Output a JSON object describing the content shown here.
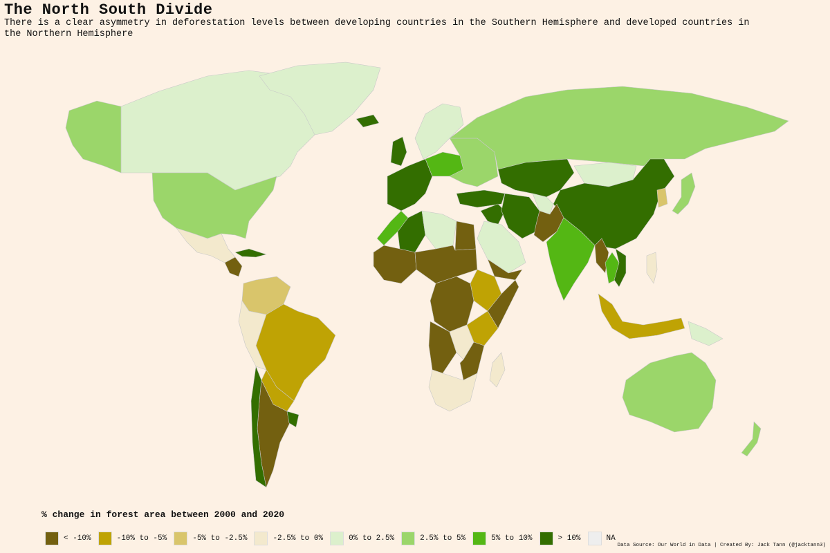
{
  "title": "The North South Divide",
  "subtitle": "There is a clear asymmetry in deforestation levels between developing countries in the Southern Hemisphere and developed countries in the Northern Hemisphere",
  "legend": {
    "title": "% change in forest area between 2000 and 2020",
    "items": [
      {
        "label": "< -10%",
        "color": "#736010"
      },
      {
        "label": "-10% to -5%",
        "color": "#bfa304"
      },
      {
        "label": "-5% to -2.5%",
        "color": "#d9c56b"
      },
      {
        "label": "-2.5% to 0%",
        "color": "#f3e9cd"
      },
      {
        "label": "0% to 2.5%",
        "color": "#dcf0cc"
      },
      {
        "label": "2.5% to 5%",
        "color": "#9bd66a"
      },
      {
        "label": "5% to 10%",
        "color": "#54b714"
      },
      {
        "label": "> 10%",
        "color": "#336e00"
      },
      {
        "label": "NA",
        "color": "#eeeeee"
      }
    ]
  },
  "credit": "Data Source: Our World in Data | Created By: Jack Tann (@jacktann3)",
  "regions": [
    {
      "name": "canada",
      "color": "#dcf0cc"
    },
    {
      "name": "alaska",
      "color": "#9bd66a"
    },
    {
      "name": "usa",
      "color": "#9bd66a"
    },
    {
      "name": "greenland",
      "color": "#dcf0cc"
    },
    {
      "name": "mexico",
      "color": "#f3e9cd"
    },
    {
      "name": "central-america",
      "color": "#736010"
    },
    {
      "name": "cuba",
      "color": "#336e00"
    },
    {
      "name": "colombia-venezuela",
      "color": "#d9c56b"
    },
    {
      "name": "brazil",
      "color": "#bfa304"
    },
    {
      "name": "peru",
      "color": "#f3e9cd"
    },
    {
      "name": "bolivia-paraguay",
      "color": "#bfa304"
    },
    {
      "name": "argentina",
      "color": "#736010"
    },
    {
      "name": "chile",
      "color": "#336e00"
    },
    {
      "name": "uruguay",
      "color": "#336e00"
    },
    {
      "name": "iceland",
      "color": "#336e00"
    },
    {
      "name": "scandinavia",
      "color": "#dcf0cc"
    },
    {
      "name": "uk",
      "color": "#336e00"
    },
    {
      "name": "western-europe",
      "color": "#336e00"
    },
    {
      "name": "central-europe",
      "color": "#54b714"
    },
    {
      "name": "eastern-europe",
      "color": "#9bd66a"
    },
    {
      "name": "russia",
      "color": "#9bd66a"
    },
    {
      "name": "turkey",
      "color": "#336e00"
    },
    {
      "name": "middle-east",
      "color": "#336e00"
    },
    {
      "name": "saudi-arabia",
      "color": "#dcf0cc"
    },
    {
      "name": "yemen",
      "color": "#736010"
    },
    {
      "name": "morocco",
      "color": "#54b714"
    },
    {
      "name": "algeria",
      "color": "#336e00"
    },
    {
      "name": "libya",
      "color": "#dcf0cc"
    },
    {
      "name": "egypt",
      "color": "#736010"
    },
    {
      "name": "west-africa",
      "color": "#736010"
    },
    {
      "name": "sahel",
      "color": "#736010"
    },
    {
      "name": "ethiopia",
      "color": "#bfa304"
    },
    {
      "name": "somalia",
      "color": "#736010"
    },
    {
      "name": "congo",
      "color": "#736010"
    },
    {
      "name": "east-africa",
      "color": "#bfa304"
    },
    {
      "name": "angola",
      "color": "#736010"
    },
    {
      "name": "zambia",
      "color": "#f3e9cd"
    },
    {
      "name": "mozambique",
      "color": "#736010"
    },
    {
      "name": "south-africa",
      "color": "#f3e9cd"
    },
    {
      "name": "madagascar",
      "color": "#f3e9cd"
    },
    {
      "name": "kazakhstan-central-asia",
      "color": "#336e00"
    },
    {
      "name": "mongolia",
      "color": "#dcf0cc"
    },
    {
      "name": "china",
      "color": "#336e00"
    },
    {
      "name": "iran",
      "color": "#336e00"
    },
    {
      "name": "pakistan",
      "color": "#736010"
    },
    {
      "name": "afghanistan",
      "color": "#dcf0cc"
    },
    {
      "name": "india",
      "color": "#54b714"
    },
    {
      "name": "myanmar",
      "color": "#736010"
    },
    {
      "name": "indochina",
      "color": "#54b714"
    },
    {
      "name": "vietnam",
      "color": "#336e00"
    },
    {
      "name": "korea",
      "color": "#d9c56b"
    },
    {
      "name": "japan",
      "color": "#9bd66a"
    },
    {
      "name": "philippines",
      "color": "#f3e9cd"
    },
    {
      "name": "indonesia",
      "color": "#bfa304"
    },
    {
      "name": "papua",
      "color": "#dcf0cc"
    },
    {
      "name": "australia",
      "color": "#9bd66a"
    },
    {
      "name": "new-zealand",
      "color": "#9bd66a"
    }
  ]
}
